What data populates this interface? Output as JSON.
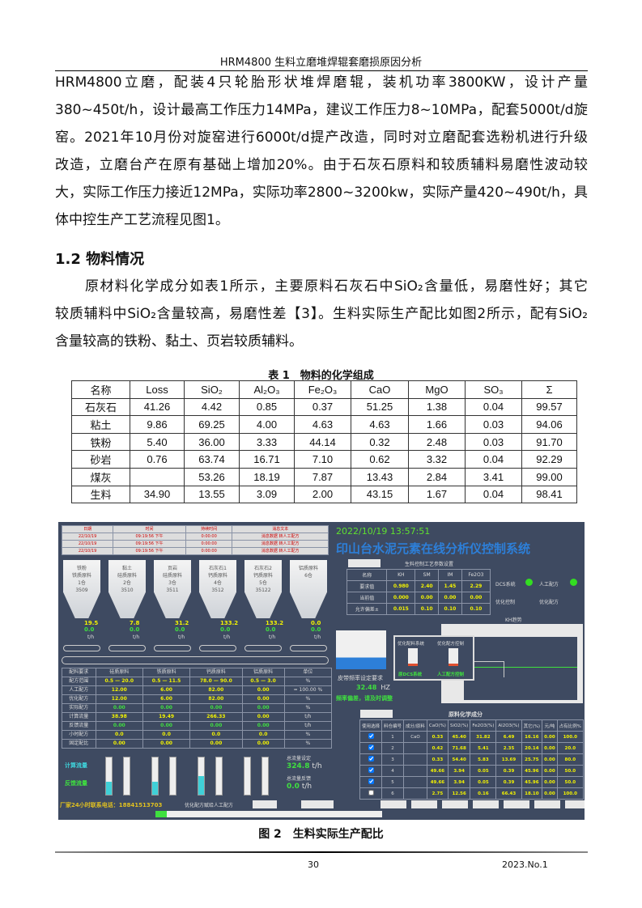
{
  "header": "HRM4800 生料立磨堆焊辊套磨损原因分析",
  "para1": [
    "HRM4800立磨，配装4只轮胎形状堆焊磨辊，装机功率3800KW，设计产量",
    "380~450t/h，设计最高工作压力14MPa，建议工作压力8~10MPa，配套5000t/d旋",
    "窑。2021年10月份对旋窑进行6000t/d提产改造，同时对立磨配套选粉机进行升级",
    "改造，立磨台产在原有基础上增加20%。由于石灰石原料和较质辅料易磨性波动较",
    "大，实际工作压力接近12MPa，实际功率2800~3200kw，实际产量420~490t/h，具",
    "体中控生产工艺流程见图1。"
  ],
  "heading": "1.2 物料情况",
  "para2": [
    "　　原材料化学成分如表1所示，主要原料石灰石中SiO₂含量低，易磨性好；其它",
    "较质辅料中SiO₂含量较高，易磨性差【3】。生料实际生产配比如图2所示，配有SiO₂",
    "含量较高的铁粉、黏土、页岩较质辅料。"
  ],
  "table": {
    "caption": "表 1　物料的化学组成",
    "header": [
      "名称",
      "Loss",
      "SiO₂",
      "Al₂O₃",
      "Fe₂O₃",
      "CaO",
      "MgO",
      "SO₃",
      "Σ"
    ],
    "rows": [
      [
        "石灰石",
        "41.26",
        "4.42",
        "0.85",
        "0.37",
        "51.25",
        "1.38",
        "0.04",
        "99.57"
      ],
      [
        "粘土",
        "9.86",
        "69.25",
        "4.00",
        "4.63",
        "4.63",
        "1.66",
        "0.03",
        "94.06"
      ],
      [
        "铁粉",
        "5.40",
        "36.00",
        "3.33",
        "44.14",
        "0.32",
        "2.48",
        "0.03",
        "91.70"
      ],
      [
        "砂岩",
        "0.76",
        "63.74",
        "16.71",
        "7.10",
        "0.62",
        "3.32",
        "0.04",
        "92.29"
      ],
      [
        "煤灰",
        "",
        "53.26",
        "18.19",
        "7.87",
        "13.43",
        "2.84",
        "3.41",
        "99.00"
      ],
      [
        "生料",
        "34.90",
        "13.55",
        "3.09",
        "2.00",
        "43.15",
        "1.67",
        "0.04",
        "98.41"
      ]
    ]
  },
  "figure": {
    "caption": "图 2　生料实际生产配比",
    "alarm": {
      "header": [
        "日期",
        "时间",
        "持续时间",
        "消息文本"
      ],
      "rows": [
        [
          "22/10/19",
          "09:19:56 下午",
          "0:00:00",
          "消息数据 转人工配方"
        ],
        [
          "22/10/19",
          "09:19:56 下午",
          "0:00:00",
          "消息数据 转人工配方"
        ],
        [
          "22/10/19",
          "09:19:56 下午",
          "0:00:00",
          "消息数据 转人工配方"
        ]
      ]
    },
    "silos": [
      {
        "name": "铁粉",
        "type": "铁质原料",
        "bin": "1仓",
        "id": "3509",
        "set": "19.5",
        "fb": "0.0"
      },
      {
        "name": "黏土",
        "type": "硅质原料",
        "bin": "2仓",
        "id": "3510",
        "set": "7.8",
        "fb": "0.0"
      },
      {
        "name": "页岩",
        "type": "硅质原料",
        "bin": "3仓",
        "id": "3511",
        "set": "31.2",
        "fb": "0.0"
      },
      {
        "name": "石灰石1",
        "type": "钙质原料",
        "bin": "4仓",
        "id": "3512",
        "set": "133.2",
        "fb": "0.0"
      },
      {
        "name": "石灰石2",
        "type": "钙质原料",
        "bin": "5仓",
        "id": "35122",
        "set": "133.2",
        "fb": "0.0"
      },
      {
        "name": "",
        "type": "铝质原料",
        "bin": "6仓",
        "id": "",
        "set": "0.0",
        "fb": "0.0"
      }
    ],
    "flow_unit": "t/h",
    "timestamp": "2022/10/19 13:57:51",
    "system_title": "印山台水泥元素在线分析仪控制系统",
    "kh": {
      "title": "生料控制工艺参数设置",
      "header": [
        "名称",
        "KH",
        "SM",
        "IM",
        "Fe2O3"
      ],
      "rows": [
        [
          "要求值",
          "0.980",
          "2.40",
          "1.45",
          "2.29"
        ],
        [
          "当前值",
          "0.000",
          "0.00",
          "0.00",
          "0.00"
        ],
        [
          "允许偏差±",
          "0.015",
          "0.10",
          "0.10",
          "0.10"
        ]
      ]
    },
    "status": {
      "dcs": "DCS系统",
      "manual": "人工配方",
      "opt_ctrl": "优化控制",
      "opt_recipe": "优化配方",
      "trend": "KH趋势"
    },
    "indicator_color": "#33dd22",
    "popup": {
      "left": "优化配料系统",
      "right": "优化配方控制",
      "left_state": "原DCS系统",
      "right_state": "人工配方控制"
    },
    "belt": {
      "label": "皮带频率设定要求",
      "value": "32.48",
      "unit": "HZ",
      "warning": "频率偏差，请及时调整"
    },
    "recipe": {
      "header": [
        "配料要求",
        "硅质原料",
        "铁质原料",
        "钙质原料",
        "铝质原料",
        "单位"
      ],
      "rows": [
        [
          "配方范围",
          "0.5 — 20.0",
          "0.5 — 11.5",
          "78.0 — 90.0",
          "0.5 — 3.0",
          "%"
        ],
        [
          "人工配方",
          "12.00",
          "6.00",
          "82.00",
          "0.00",
          "= 100.00 %"
        ],
        [
          "优化配方",
          "12.00",
          "6.00",
          "82.00",
          "0.00",
          "%"
        ],
        [
          "实际配方",
          "0.00",
          "0.00",
          "0.00",
          "0.00",
          "%"
        ],
        [
          "计算流量",
          "38.98",
          "19.49",
          "266.33",
          "0.00",
          "t/h"
        ],
        [
          "反馈流量",
          "0.00",
          "0.00",
          "0.00",
          "0.00",
          "t/h"
        ],
        [
          "小时配方",
          "0.0",
          "0.0",
          "0.0",
          "0.0",
          "%"
        ],
        [
          "固定配比",
          "0.00",
          "0.00",
          "0.00",
          "0.00",
          "%"
        ]
      ],
      "bar_labels": [
        "计算流量",
        "反馈流量"
      ],
      "bar_fill": [
        0.35,
        0.35,
        0.5,
        0
      ],
      "total_set_label": "总流量设定",
      "total_set": "324.8",
      "total_fb_label": "总流量反馈",
      "total_fb": "0.0",
      "unit": "t/h"
    },
    "hotline": "厂家24小时联系电话：18841513703",
    "assign": "优化配方赋给人工配方",
    "chem": {
      "title": "原料化学成分",
      "header": [
        "使用选择",
        "料仓编号",
        "成分/原料",
        "CaO(%)",
        "SiO2(%)",
        "Fe2O3(%)",
        "Al2O3(%)",
        "其它(%)",
        "元/吨",
        "占有比例%"
      ],
      "rows": [
        [
          true,
          "1",
          "CaO",
          "0.33",
          "45.40",
          "31.82",
          "6.49",
          "16.16",
          "0.00",
          "100.0"
        ],
        [
          true,
          "2",
          "",
          "0.42",
          "71.68",
          "5.41",
          "2.35",
          "20.14",
          "0.00",
          "20.0"
        ],
        [
          true,
          "3",
          "",
          "0.33",
          "54.40",
          "5.83",
          "13.69",
          "25.75",
          "0.00",
          "80.0"
        ],
        [
          true,
          "4",
          "",
          "49.66",
          "3.94",
          "0.05",
          "0.39",
          "45.96",
          "0.00",
          "50.0"
        ],
        [
          true,
          "5",
          "",
          "49.66",
          "3.94",
          "0.05",
          "0.39",
          "45.96",
          "0.00",
          "50.0"
        ],
        [
          false,
          "6",
          "",
          "2.75",
          "12.56",
          "0.16",
          "66.43",
          "18.10",
          "0.00",
          "100.0"
        ]
      ]
    }
  },
  "footer": {
    "page": "30",
    "journal": "2023.No.1"
  }
}
